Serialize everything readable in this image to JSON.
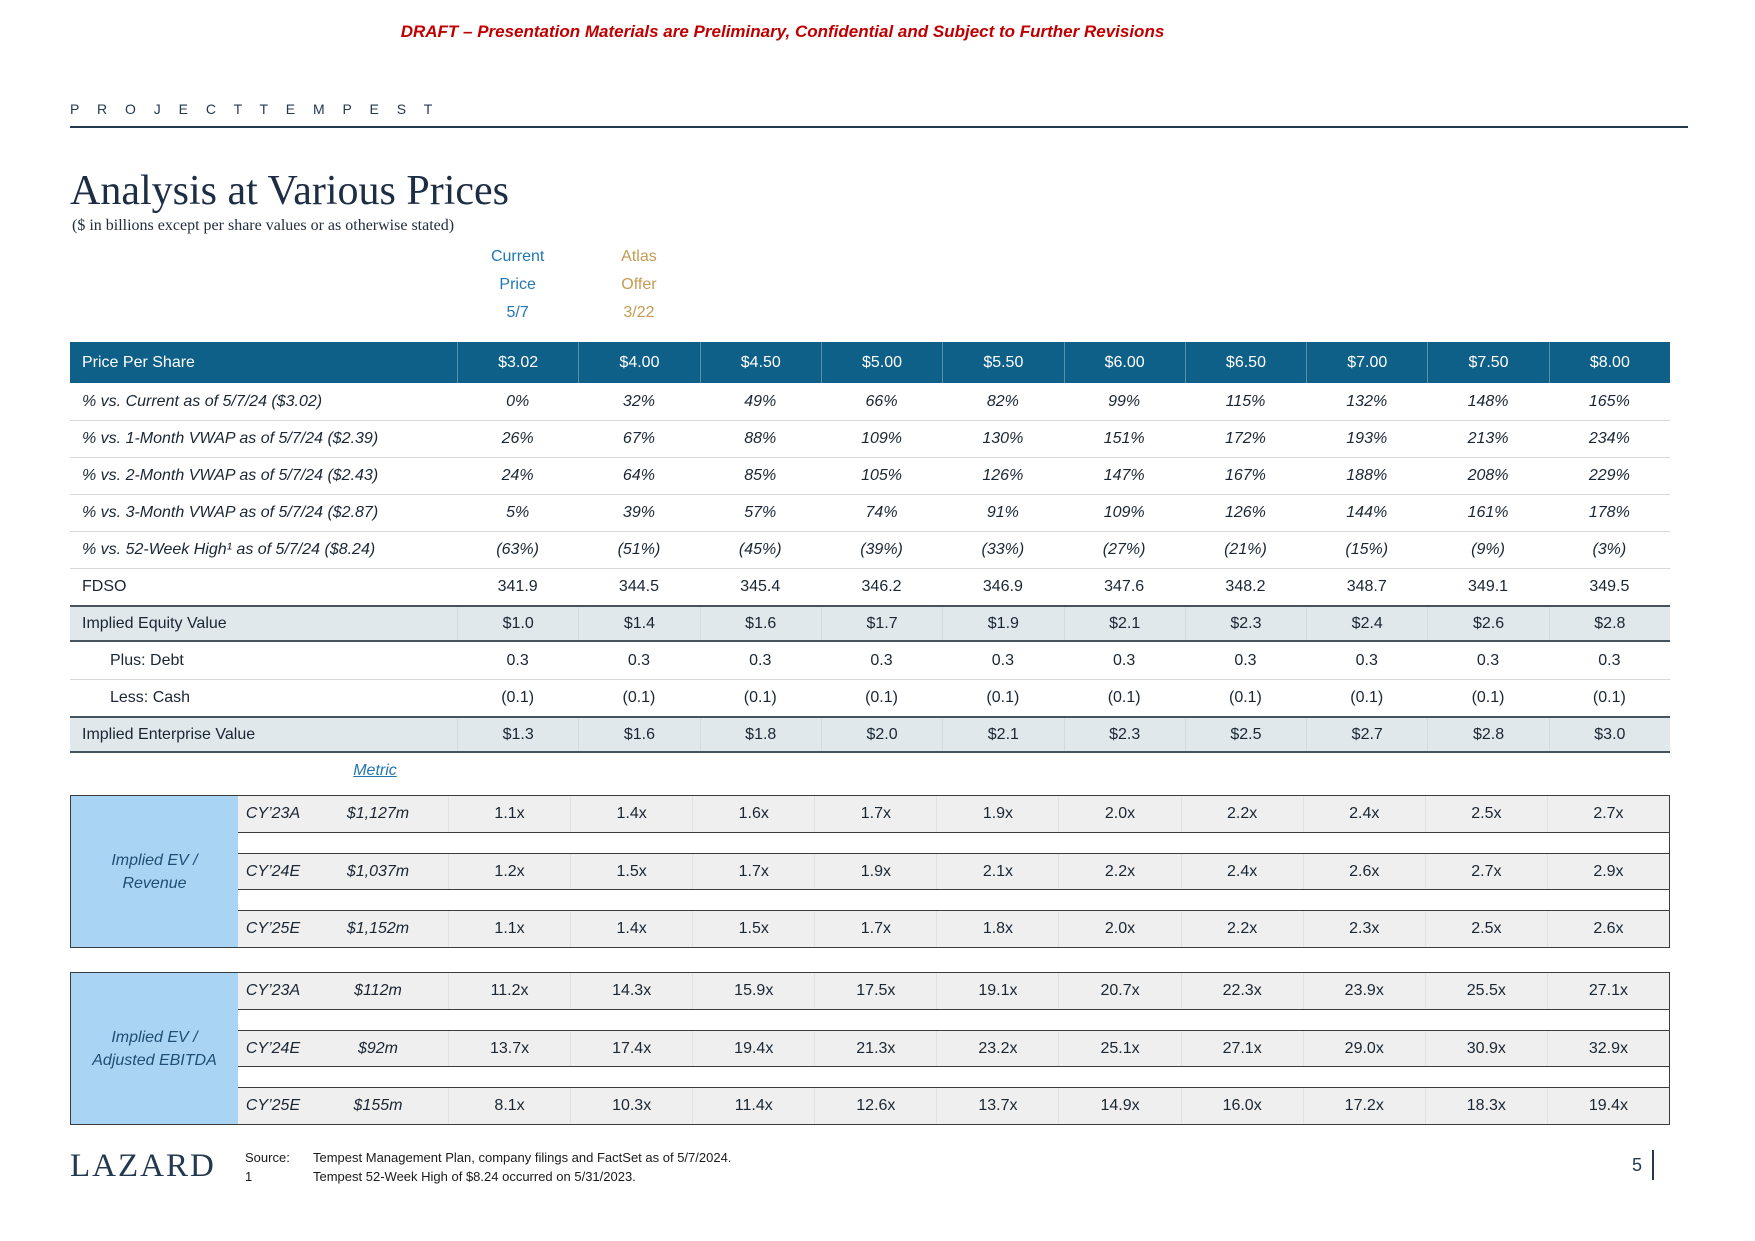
{
  "disclaimer": "DRAFT – Presentation Materials are Preliminary, Confidential and Subject to Further Revisions",
  "project": "P R O J E C T   T E M P E S T",
  "title": "Analysis at Various Prices",
  "subtitle": "($ in billions except per share values or as otherwise stated)",
  "annotations": {
    "current": {
      "lines": [
        "Current",
        "Price",
        "5/7"
      ],
      "color": "#2277b5"
    },
    "atlas": {
      "lines": [
        "Atlas",
        "Offer",
        "3/22"
      ],
      "color": "#c49b51"
    }
  },
  "table": {
    "header_label": "Price Per Share",
    "prices": [
      "$3.02",
      "$4.00",
      "$4.50",
      "$5.00",
      "$5.50",
      "$6.00",
      "$6.50",
      "$7.00",
      "$7.50",
      "$8.00"
    ],
    "rows": [
      {
        "label": "% vs. Current as of 5/7/24 ($3.02)",
        "italic": true,
        "sep": false,
        "values": [
          "0%",
          "32%",
          "49%",
          "66%",
          "82%",
          "99%",
          "115%",
          "132%",
          "148%",
          "165%"
        ]
      },
      {
        "label": "% vs. 1-Month VWAP as of 5/7/24 ($2.39)",
        "italic": true,
        "sep": true,
        "values": [
          "26%",
          "67%",
          "88%",
          "109%",
          "130%",
          "151%",
          "172%",
          "193%",
          "213%",
          "234%"
        ]
      },
      {
        "label": "% vs. 2-Month VWAP as of 5/7/24 ($2.43)",
        "italic": true,
        "sep": true,
        "values": [
          "24%",
          "64%",
          "85%",
          "105%",
          "126%",
          "147%",
          "167%",
          "188%",
          "208%",
          "229%"
        ]
      },
      {
        "label": "% vs. 3-Month VWAP as of 5/7/24 ($2.87)",
        "italic": true,
        "sep": true,
        "values": [
          "5%",
          "39%",
          "57%",
          "74%",
          "91%",
          "109%",
          "126%",
          "144%",
          "161%",
          "178%"
        ]
      },
      {
        "label": "% vs. 52-Week High¹ as of 5/7/24 ($8.24)",
        "italic": true,
        "sep": true,
        "values": [
          "(63%)",
          "(51%)",
          "(45%)",
          "(39%)",
          "(33%)",
          "(27%)",
          "(21%)",
          "(15%)",
          "(9%)",
          "(3%)"
        ]
      },
      {
        "label": "FDSO",
        "italic": false,
        "sep": true,
        "values": [
          "341.9",
          "344.5",
          "345.4",
          "346.2",
          "346.9",
          "347.6",
          "348.2",
          "348.7",
          "349.1",
          "349.5"
        ]
      },
      {
        "label": "Implied Equity Value",
        "band": true,
        "values": [
          "$1.0",
          "$1.4",
          "$1.6",
          "$1.7",
          "$1.9",
          "$2.1",
          "$2.3",
          "$2.4",
          "$2.6",
          "$2.8"
        ]
      },
      {
        "label": "Plus: Debt",
        "indent": true,
        "values": [
          "0.3",
          "0.3",
          "0.3",
          "0.3",
          "0.3",
          "0.3",
          "0.3",
          "0.3",
          "0.3",
          "0.3"
        ]
      },
      {
        "label": "Less: Cash",
        "indent": true,
        "sep": true,
        "values": [
          "(0.1)",
          "(0.1)",
          "(0.1)",
          "(0.1)",
          "(0.1)",
          "(0.1)",
          "(0.1)",
          "(0.1)",
          "(0.1)",
          "(0.1)"
        ]
      },
      {
        "label": "Implied Enterprise Value",
        "band": true,
        "values": [
          "$1.3",
          "$1.6",
          "$1.8",
          "$2.0",
          "$2.1",
          "$2.3",
          "$2.5",
          "$2.7",
          "$2.8",
          "$3.0"
        ]
      }
    ]
  },
  "metric_header": "Metric",
  "metric_blocks": [
    {
      "label_lines": [
        "Implied EV /",
        "Revenue"
      ],
      "rows": [
        {
          "period": "CY’23A",
          "metric": "$1,127m",
          "values": [
            "1.1x",
            "1.4x",
            "1.6x",
            "1.7x",
            "1.9x",
            "2.0x",
            "2.2x",
            "2.4x",
            "2.5x",
            "2.7x"
          ]
        },
        {
          "period": "CY’24E",
          "metric": "$1,037m",
          "values": [
            "1.2x",
            "1.5x",
            "1.7x",
            "1.9x",
            "2.1x",
            "2.2x",
            "2.4x",
            "2.6x",
            "2.7x",
            "2.9x"
          ]
        },
        {
          "period": "CY’25E",
          "metric": "$1,152m",
          "values": [
            "1.1x",
            "1.4x",
            "1.5x",
            "1.7x",
            "1.8x",
            "2.0x",
            "2.2x",
            "2.3x",
            "2.5x",
            "2.6x"
          ]
        }
      ]
    },
    {
      "label_lines": [
        "Implied EV /",
        "Adjusted EBITDA"
      ],
      "rows": [
        {
          "period": "CY’23A",
          "metric": "$112m",
          "values": [
            "11.2x",
            "14.3x",
            "15.9x",
            "17.5x",
            "19.1x",
            "20.7x",
            "22.3x",
            "23.9x",
            "25.5x",
            "27.1x"
          ]
        },
        {
          "period": "CY’24E",
          "metric": "$92m",
          "values": [
            "13.7x",
            "17.4x",
            "19.4x",
            "21.3x",
            "23.2x",
            "25.1x",
            "27.1x",
            "29.0x",
            "30.9x",
            "32.9x"
          ]
        },
        {
          "period": "CY’25E",
          "metric": "$155m",
          "values": [
            "8.1x",
            "10.3x",
            "11.4x",
            "12.6x",
            "13.7x",
            "14.9x",
            "16.0x",
            "17.2x",
            "18.3x",
            "19.4x"
          ]
        }
      ]
    }
  ],
  "footer": {
    "logo": "LAZARD",
    "source_label": "Source:",
    "source_text": "Tempest Management Plan, company filings and FactSet as of 5/7/2024.",
    "footnote_num": "1",
    "footnote_text": "Tempest 52-Week High of $8.24 occurred on 5/31/2023.",
    "page": "5"
  },
  "colors": {
    "header_bar": "#0f6089",
    "implied_band_bg": "#e0e8ec",
    "metric_band_bg": "#efefef",
    "metric_label_bg": "#aad4f4",
    "current_price_blue": "#2277b5",
    "atlas_offer_gold": "#c49b51",
    "draft_red": "#c00000",
    "navy": "#1d2e44"
  }
}
